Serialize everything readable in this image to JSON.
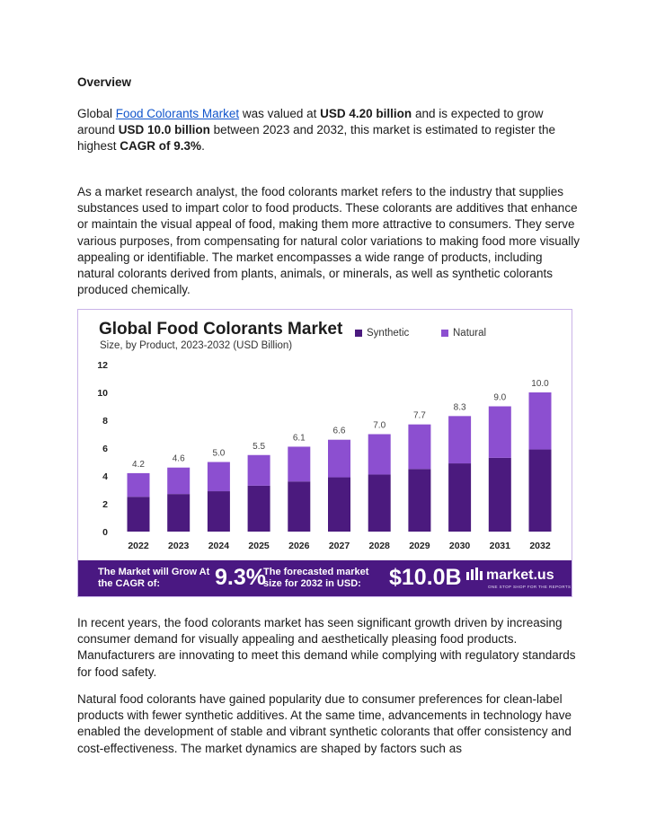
{
  "heading": "Overview",
  "p1": {
    "t1": "Global ",
    "link": "Food Colorants Market",
    "t2": " was valued at ",
    "b1": "USD 4.20 billion",
    "t3": " and is expected to grow around ",
    "b2": "USD 10.0 billion",
    "t4": " between 2023 and 2032, this market is estimated to register the highest ",
    "b3": "CAGR of 9.3%",
    "t5": "."
  },
  "p2": "As a market research analyst, the food colorants market refers to the industry that supplies substances used to impart color to food products. These colorants are additives that enhance or maintain the visual appeal of food, making them more attractive to consumers. They serve various purposes, from compensating for natural color variations to making food more visually appealing or identifiable. The market encompasses a wide range of products, including natural colorants derived from plants, animals, or minerals, as well as synthetic colorants produced chemically.",
  "p3": "In recent years, the food colorants market has seen significant growth driven by increasing consumer demand for visually appealing and aesthetically pleasing food products. Manufacturers are innovating to meet this demand while complying with regulatory standards for food safety.",
  "p4": "Natural food colorants have gained popularity due to consumer preferences for clean-label products with fewer synthetic additives. At the same time, advancements in technology have enabled the development of stable and vibrant synthetic colorants that offer consistency and cost-effectiveness. The market dynamics are shaped by factors such as",
  "chart_data": {
    "type": "bar",
    "stacked": true,
    "title": "Global Food Colorants Market",
    "subtitle": "Size, by Product, 2023-2032 (USD Billion)",
    "categories": [
      "2022",
      "2023",
      "2024",
      "2025",
      "2026",
      "2027",
      "2028",
      "2029",
      "2030",
      "2031",
      "2032"
    ],
    "series": [
      {
        "name": "Synthetic",
        "color": "#4b1a7e",
        "values": [
          2.5,
          2.7,
          2.9,
          3.3,
          3.6,
          3.9,
          4.1,
          4.5,
          4.9,
          5.3,
          5.9
        ]
      },
      {
        "name": "Natural",
        "color": "#8c4fd0",
        "values": [
          1.7,
          1.9,
          2.1,
          2.2,
          2.5,
          2.7,
          2.9,
          3.2,
          3.4,
          3.7,
          4.1
        ]
      }
    ],
    "totals": [
      "4.2",
      "4.6",
      "5.0",
      "5.5",
      "6.1",
      "6.6",
      "7.0",
      "7.7",
      "8.3",
      "9.0",
      "10.0"
    ],
    "yticks": [
      "0",
      "2",
      "4",
      "6",
      "8",
      "10",
      "12"
    ],
    "ylim": [
      0,
      12
    ],
    "grid": false,
    "legend": "top-right"
  },
  "banner": {
    "text1": "The Market will Grow At the CAGR of:",
    "cagr": "9.3%",
    "text2": "The forecasted market size for 2032 in USD:",
    "value": "$10.0B",
    "logo": "market.us",
    "tagline": "ONE STOP SHOP FOR THE REPORTS",
    "color": "#4a1882"
  }
}
